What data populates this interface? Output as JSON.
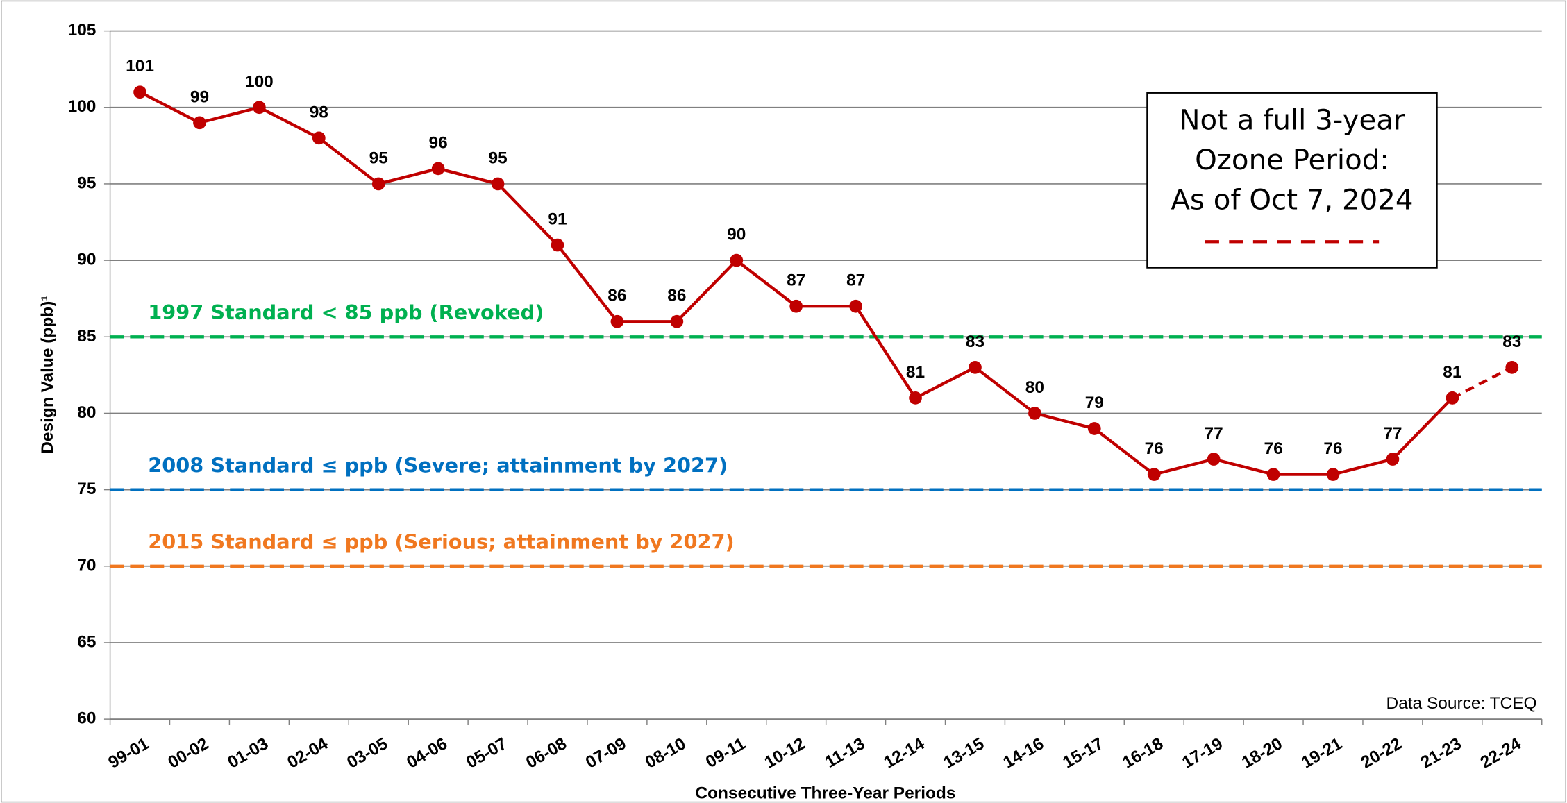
{
  "chart_data": {
    "type": "line",
    "y_label": "Design Value (ppb)¹",
    "x_label": "Consecutive Three-Year Periods",
    "categories": [
      "99-01",
      "00-02",
      "01-03",
      "02-04",
      "03-05",
      "04-06",
      "05-07",
      "06-08",
      "07-09",
      "08-10",
      "09-11",
      "10-12",
      "11-13",
      "12-14",
      "13-15",
      "14-16",
      "15-17",
      "16-18",
      "17-19",
      "18-20",
      "19-21",
      "20-22",
      "21-23",
      "22-24"
    ],
    "series": [
      {
        "name": "Design Value",
        "color": "#c00000",
        "dash": false,
        "values": [
          101,
          99,
          100,
          98,
          95,
          96,
          95,
          91,
          86,
          86,
          90,
          87,
          87,
          81,
          83,
          80,
          79,
          76,
          77,
          76,
          76,
          77,
          81,
          null
        ]
      },
      {
        "name": [
          "Not a full 3-year",
          "Ozone Period:",
          "As of Oct 7, 2024"
        ],
        "color": "#c00000",
        "dash": true,
        "values": [
          null,
          null,
          null,
          null,
          null,
          null,
          null,
          null,
          null,
          null,
          null,
          null,
          null,
          null,
          null,
          null,
          null,
          null,
          null,
          null,
          null,
          null,
          81,
          83
        ]
      }
    ],
    "reference_lines": [
      {
        "value": 85,
        "label": "1997 Standard < 85 ppb (Revoked)",
        "color": "#00b050"
      },
      {
        "value": 75,
        "label": "2008 Standard ≤ ppb (Severe; attainment by 2027)",
        "color": "#0070c0"
      },
      {
        "value": 70,
        "label": "2015 Standard ≤ ppb (Serious; attainment by 2027)",
        "color": "#f07820"
      }
    ],
    "annotation": "Data Source: TCEQ",
    "ylim": [
      60,
      105
    ],
    "yticks": [
      60,
      65,
      70,
      75,
      80,
      85,
      90,
      95,
      100,
      105
    ],
    "grid": true
  }
}
